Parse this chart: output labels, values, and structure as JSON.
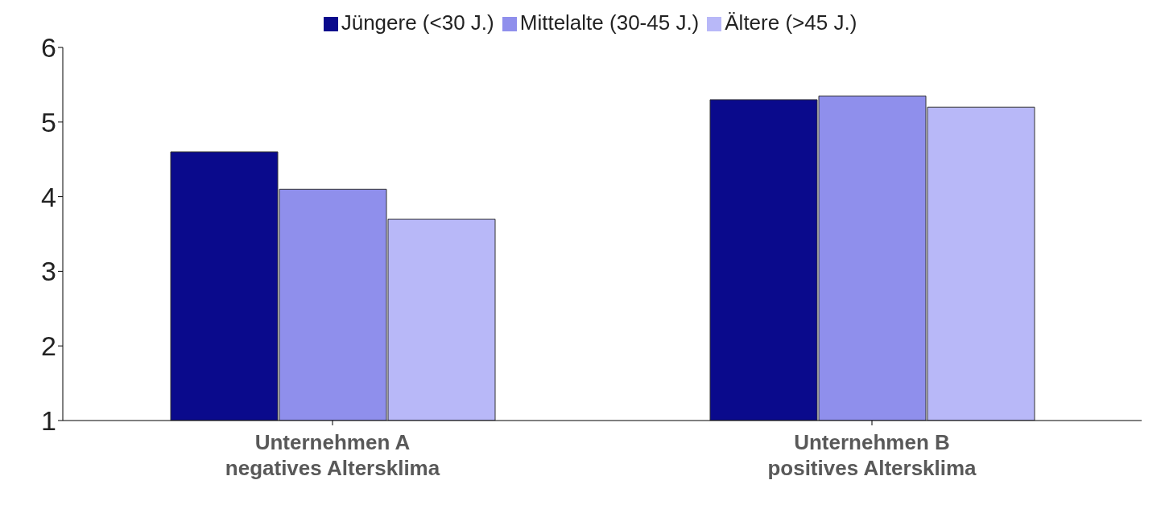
{
  "chart_data": {
    "type": "bar",
    "categories": [
      "Unternehmen A\nnegatives Altersklima",
      "Unternehmen B\npositives Altersklima"
    ],
    "series": [
      {
        "name": "Jüngere (<30 J.)",
        "color": "#0a0a8c",
        "values": [
          4.6,
          5.3
        ]
      },
      {
        "name": "Mittelalte (30-45 J.)",
        "color": "#8f8fec",
        "values": [
          4.1,
          5.35
        ]
      },
      {
        "name": "Ältere (>45 J.)",
        "color": "#b8b8f8",
        "values": [
          3.7,
          5.2
        ]
      }
    ],
    "ylim": [
      1,
      6
    ],
    "yticks": [
      1,
      2,
      3,
      4,
      5,
      6
    ],
    "grid": false,
    "legend": "top"
  }
}
